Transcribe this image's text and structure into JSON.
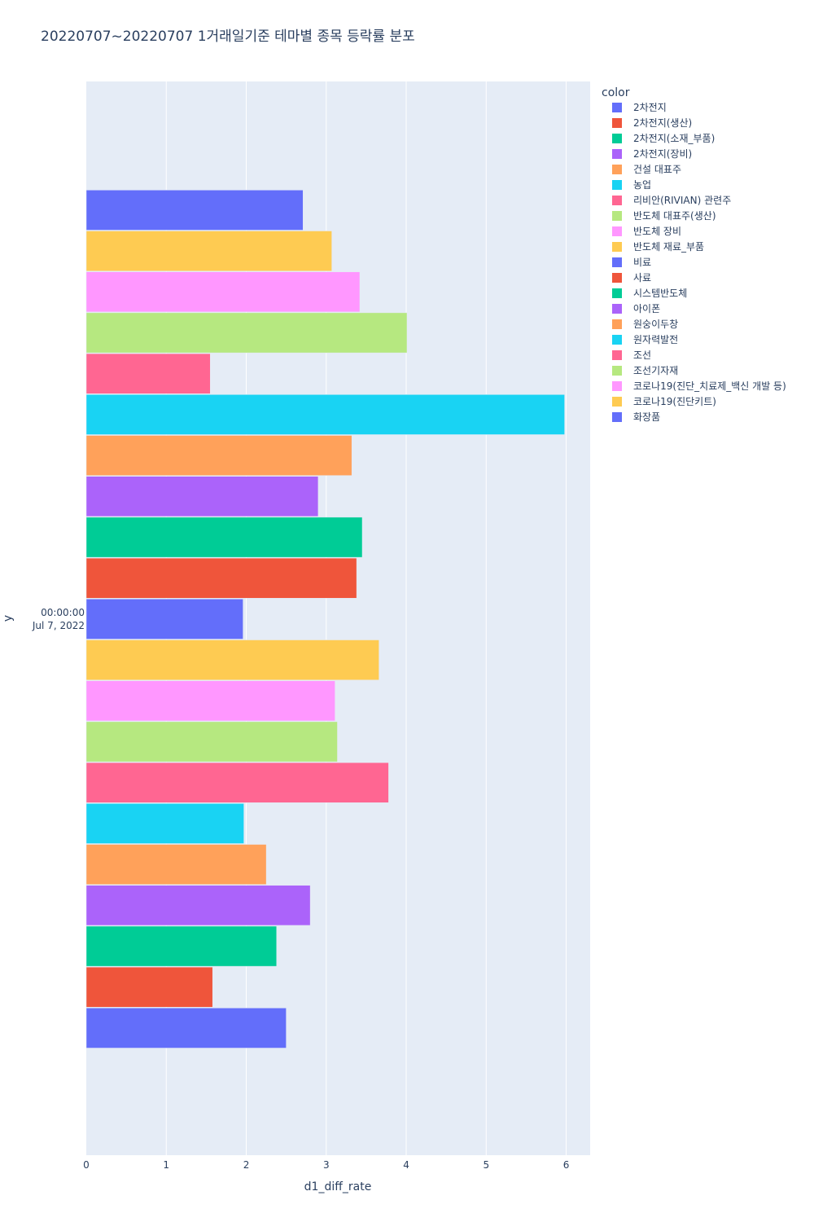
{
  "chart_data": {
    "type": "bar",
    "orientation": "horizontal",
    "title": "20220707~20220707 1거래일기준 테마별 종목 등락률 분포",
    "xlabel": "d1_diff_rate",
    "ylabel": "y",
    "xlim": [
      0,
      6.3
    ],
    "x_ticks": [
      "0",
      "1",
      "2",
      "3",
      "4",
      "5",
      "6"
    ],
    "y_tick_line1": "00:00:00",
    "y_tick_line2": "Jul 7, 2022",
    "grid": true,
    "legend_title": "color",
    "legend_position": "right",
    "series": [
      {
        "name": "2차전지",
        "value": 2.5,
        "color": "#636efa"
      },
      {
        "name": "2차전지(생산)",
        "value": 1.58,
        "color": "#EF553B"
      },
      {
        "name": "2차전지(소재_부품)",
        "value": 2.38,
        "color": "#00cc96"
      },
      {
        "name": "2차전지(장비)",
        "value": 2.8,
        "color": "#ab63fa"
      },
      {
        "name": "건설 대표주",
        "value": 2.25,
        "color": "#FFA15A"
      },
      {
        "name": "농업",
        "value": 1.97,
        "color": "#19d3f3"
      },
      {
        "name": "리비안(RIVIAN) 관련주",
        "value": 3.78,
        "color": "#FF6692"
      },
      {
        "name": "반도체 대표주(생산)",
        "value": 3.14,
        "color": "#B6E880"
      },
      {
        "name": "반도체 장비",
        "value": 3.11,
        "color": "#FF97FF"
      },
      {
        "name": "반도체 재료_부품",
        "value": 3.66,
        "color": "#FECB52"
      },
      {
        "name": "비료",
        "value": 1.96,
        "color": "#636efa"
      },
      {
        "name": "사료",
        "value": 3.38,
        "color": "#EF553B"
      },
      {
        "name": "시스템반도체",
        "value": 3.45,
        "color": "#00cc96"
      },
      {
        "name": "아이폰",
        "value": 2.9,
        "color": "#ab63fa"
      },
      {
        "name": "원숭이두창",
        "value": 3.32,
        "color": "#FFA15A"
      },
      {
        "name": "원자력발전",
        "value": 5.98,
        "color": "#19d3f3"
      },
      {
        "name": "조선",
        "value": 1.55,
        "color": "#FF6692"
      },
      {
        "name": "조선기자재",
        "value": 4.01,
        "color": "#B6E880"
      },
      {
        "name": "코로나19(진단_치료제_백신 개발 등)",
        "value": 3.42,
        "color": "#FF97FF"
      },
      {
        "name": "코로나19(진단키트)",
        "value": 3.07,
        "color": "#FECB52"
      },
      {
        "name": "화장품",
        "value": 2.71,
        "color": "#636efa"
      }
    ]
  }
}
